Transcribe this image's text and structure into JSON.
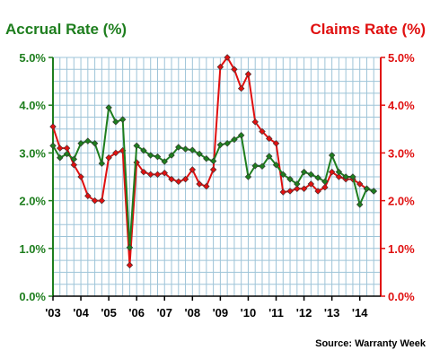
{
  "chart_data": {
    "type": "line",
    "title_left": "Accrual Rate (%)",
    "title_right": "Claims Rate (%)",
    "source": "Source: Warranty Week",
    "colors": {
      "accrual": "#1e7e1e",
      "claims": "#e01010",
      "grid": "#9ec4d8"
    },
    "y_left": {
      "range": [
        0,
        5
      ],
      "ticks": [
        "0.0%",
        "1.0%",
        "2.0%",
        "3.0%",
        "4.0%",
        "5.0%"
      ]
    },
    "y_right": {
      "range": [
        0,
        5
      ],
      "ticks": [
        "0.0%",
        "1.0%",
        "2.0%",
        "3.0%",
        "4.0%",
        "5.0%"
      ]
    },
    "x_range": [
      2003,
      2014.75
    ],
    "x_ticks": [
      {
        "label": "'03",
        "x": 2003
      },
      {
        "label": "'04",
        "x": 2004
      },
      {
        "label": "'05",
        "x": 2005
      },
      {
        "label": "'06",
        "x": 2006
      },
      {
        "label": "'07",
        "x": 2007
      },
      {
        "label": "'08",
        "x": 2008
      },
      {
        "label": "'09",
        "x": 2009
      },
      {
        "label": "'10",
        "x": 2010
      },
      {
        "label": "'11",
        "x": 2011
      },
      {
        "label": "'12",
        "x": 2012
      },
      {
        "label": "'13",
        "x": 2013
      },
      {
        "label": "'14",
        "x": 2014
      }
    ],
    "series": [
      {
        "key": "accrual",
        "axis": "left",
        "x": [
          2003,
          2003.25,
          2003.5,
          2003.75,
          2004,
          2004.25,
          2004.5,
          2004.75,
          2005,
          2005.25,
          2005.5,
          2005.75,
          2006,
          2006.25,
          2006.5,
          2006.75,
          2007,
          2007.25,
          2007.5,
          2007.75,
          2008,
          2008.25,
          2008.5,
          2008.75,
          2009,
          2009.25,
          2009.5,
          2009.75,
          2010,
          2010.25,
          2010.5,
          2010.75,
          2011,
          2011.25,
          2011.5,
          2011.75,
          2012,
          2012.25,
          2012.5,
          2012.75,
          2013,
          2013.25,
          2013.5,
          2013.75,
          2014,
          2014.25,
          2014.5
        ],
        "values": [
          3.15,
          2.9,
          2.98,
          2.87,
          3.2,
          3.25,
          3.2,
          2.78,
          3.95,
          3.65,
          3.7,
          1.02,
          3.15,
          3.05,
          2.95,
          2.92,
          2.82,
          2.95,
          3.12,
          3.08,
          3.06,
          2.98,
          2.88,
          2.83,
          3.17,
          3.2,
          3.28,
          3.37,
          2.5,
          2.73,
          2.72,
          2.93,
          2.75,
          2.55,
          2.45,
          2.35,
          2.6,
          2.55,
          2.48,
          2.4,
          2.95,
          2.6,
          2.5,
          2.5,
          1.92,
          2.25,
          2.2
        ]
      },
      {
        "key": "claims",
        "axis": "right",
        "x": [
          2003,
          2003.25,
          2003.5,
          2003.75,
          2004,
          2004.25,
          2004.5,
          2004.75,
          2005,
          2005.25,
          2005.5,
          2005.75,
          2006,
          2006.25,
          2006.5,
          2006.75,
          2007,
          2007.25,
          2007.5,
          2007.75,
          2008,
          2008.25,
          2008.5,
          2008.75,
          2009,
          2009.25,
          2009.5,
          2009.75,
          2010,
          2010.25,
          2010.5,
          2010.75,
          2011,
          2011.25,
          2011.5,
          2011.75,
          2012,
          2012.25,
          2012.5,
          2012.75,
          2013,
          2013.25,
          2013.5,
          2013.75,
          2014,
          2014.25,
          2014.5
        ],
        "values": [
          3.55,
          3.1,
          3.1,
          2.75,
          2.5,
          2.1,
          2.0,
          2.0,
          2.9,
          3.0,
          3.05,
          0.65,
          2.8,
          2.6,
          2.55,
          2.55,
          2.58,
          2.45,
          2.4,
          2.45,
          2.65,
          2.35,
          2.3,
          2.65,
          4.8,
          5.0,
          4.75,
          4.35,
          4.65,
          3.65,
          3.45,
          3.3,
          3.2,
          2.18,
          2.2,
          2.25,
          2.25,
          2.35,
          2.2,
          2.28,
          2.6,
          2.5,
          2.45,
          2.45,
          2.35,
          2.25,
          2.2
        ]
      }
    ]
  }
}
